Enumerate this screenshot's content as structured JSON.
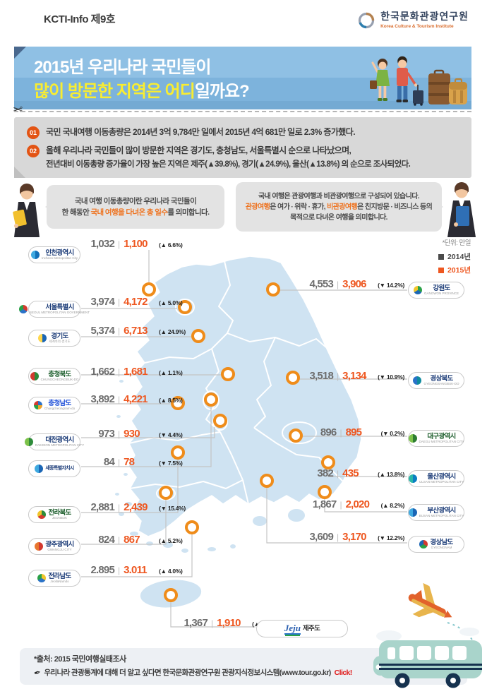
{
  "header": {
    "issue": "KCTI-Info 제9호",
    "org_kr": "한국문화관광연구원",
    "org_en": "Korea Culture & Tourism Institute"
  },
  "banner": {
    "title_line1": "2015년 우리나라 국민들이",
    "title_line2_highlight": "많이 방문한 지역은 어디",
    "title_line2_rest": "일까요?"
  },
  "points": [
    {
      "num": "01",
      "lines": [
        "국민 국내여행 이동총량은 2014년 3억 9,784만 일에서 2015년 4억 681만 일로 2.3% 증가했다."
      ]
    },
    {
      "num": "02",
      "lines": [
        "올해 우리나라 국민들이 많이 방문한 지역은 경기도, 충청남도, 서울특별시 순으로 나타났으며,",
        "전년대비 이동총량 증가율이 가장 높은 지역은 제주(▲39.8%), 경기(▲24.9%), 울산(▲13.8%) 의 순으로 조사되었다."
      ]
    }
  ],
  "bubbles": {
    "left": {
      "line1": "국내 여행 이동총량이란 우리나라 국민들이",
      "line2_pre": "한 해동안 ",
      "line2_hl": "국내 여행을 다녀온 총 일수",
      "line2_post": "를 의미합니다."
    },
    "right": {
      "line1": "국내 여행은 관광여행과 비관광여행으로 구성되어 있습니다.",
      "line2_hl1": "관광여행",
      "line2_mid": "은 여가 · 위락 · 휴가, ",
      "line2_hl2": "비관광여행",
      "line2_post": "은 친지방문 · 비즈니스 등의",
      "line3": "목적으로 다녀온 여행을 의미합니다."
    }
  },
  "legend": {
    "unit": "*단위: 만일",
    "y2014": "2014년",
    "y2015": "2015년",
    "color2014": "#4a4a4a",
    "color2015": "#ee5720"
  },
  "chart_data": {
    "type": "map",
    "title": "2015년 우리나라 국민들이 많이 방문한 지역",
    "unit": "만일",
    "series": [
      "2014년",
      "2015년"
    ],
    "regions": [
      {
        "id": "incheon",
        "name": "인천광역시",
        "sub": "Incheon Metropolitan City",
        "name_color": "#1c3c78",
        "logo_colors": [
          "#1270b8",
          "#3fa9e0"
        ],
        "v2014": 1032,
        "v2015": 1100,
        "change_pct": 6.6,
        "d2014": "1,032",
        "d2015": "1,100",
        "dchange": "(▲ 6.6%)"
      },
      {
        "id": "seoul",
        "name": "서울특별시",
        "sub": "SEOUL METROPOLITAN GOVERNMENT",
        "name_color": "#1c3c78",
        "logo_colors": [
          "#d43a2f",
          "#2a72c8",
          "#2aa147"
        ],
        "v2014": 3974,
        "v2015": 4172,
        "change_pct": 5.0,
        "d2014": "3,974",
        "d2015": "4,172",
        "dchange": "(▲ 5.0%)"
      },
      {
        "id": "gyeonggi",
        "name": "경기도",
        "sub": "세계속의 경기도",
        "name_color": "#1c3c78",
        "logo_colors": [
          "#1b66b5",
          "#ffd74d"
        ],
        "v2014": 5374,
        "v2015": 6713,
        "change_pct": 24.9,
        "d2014": "5,374",
        "d2015": "6,713",
        "dchange": "(▲ 24.9%)"
      },
      {
        "id": "chungbuk",
        "name": "충청북도",
        "sub": "CHUNGCHEONGBUK-DO",
        "name_color": "#1a5c2a",
        "logo_colors": [
          "#2e8b3a",
          "#d43a2f"
        ],
        "v2014": 1662,
        "v2015": 1681,
        "change_pct": 1.1,
        "d2014": "1,662",
        "d2015": "1,681",
        "dchange": "(▲ 1.1%)"
      },
      {
        "id": "chungnam",
        "name": "충청남도",
        "sub": "Chungcheongnam-do",
        "name_color": "#1d4ed8",
        "logo_colors": [
          "#2a72c8",
          "#f0a52c",
          "#2aa147",
          "#d43a2f"
        ],
        "v2014": 3892,
        "v2015": 4221,
        "change_pct": 8.5,
        "d2014": "3,892",
        "d2015": "4,221",
        "dchange": "(▲ 8.5%)"
      },
      {
        "id": "daejeon",
        "name": "대전광역시",
        "sub": "DAEJEON METROPOLITAN CITY",
        "name_color": "#1c3c78",
        "logo_colors": [
          "#2e8b3a",
          "#7cc24a"
        ],
        "v2014": 973,
        "v2015": 930,
        "change_pct": -4.4,
        "d2014": "973",
        "d2015": "930",
        "dchange": "(▼ 4.4%)"
      },
      {
        "id": "sejong",
        "name": "세종특별자치시",
        "sub": "",
        "name_color": "#1c3c78",
        "logo_colors": [
          "#1b66b5",
          "#3fa9e0"
        ],
        "v2014": 84,
        "v2015": 78,
        "change_pct": -7.5,
        "d2014": "84",
        "d2015": "78",
        "dchange": "(▼ 7.5%)"
      },
      {
        "id": "jeonbuk",
        "name": "전라북도",
        "sub": "JEONBUK",
        "name_color": "#1a5c2a",
        "logo_colors": [
          "#2e8b3a",
          "#d43a2f",
          "#f0c52c"
        ],
        "v2014": 2881,
        "v2015": 2439,
        "change_pct": -15.4,
        "d2014": "2,881",
        "d2015": "2,439",
        "dchange": "(▼ 15.4%)"
      },
      {
        "id": "gwangju",
        "name": "광주광역시",
        "sub": "GWANGJU CITY",
        "name_color": "#1c3c78",
        "logo_colors": [
          "#d43a2f",
          "#e8762f"
        ],
        "v2014": 824,
        "v2015": 867,
        "change_pct": 5.2,
        "d2014": "824",
        "d2015": "867",
        "dchange": "(▲ 5.2%)"
      },
      {
        "id": "jeonnam",
        "name": "전라남도",
        "sub": "JeollaNamdo",
        "name_color": "#1c3c78",
        "logo_colors": [
          "#f0c52c",
          "#2a72c8",
          "#2aa147"
        ],
        "v2014": 2895,
        "v2015": 3011,
        "change_pct": 4.0,
        "d2014": "2.895",
        "d2015": "3.011",
        "dchange": "(▲ 4.0%)"
      },
      {
        "id": "gangwon",
        "name": "강원도",
        "sub": "GANGWON PROVINCE",
        "name_color": "#1c3c78",
        "logo_colors": [
          "#2aa147",
          "#1b66b5",
          "#f0c52c"
        ],
        "v2014": 4553,
        "v2015": 3906,
        "change_pct": -14.2,
        "d2014": "4,553",
        "d2015": "3,906",
        "dchange": "(▼ 14.2%)"
      },
      {
        "id": "gyeongbuk",
        "name": "경상북도",
        "sub": "GYEONGSANGBUK-DO",
        "name_color": "#1c3c78",
        "logo_colors": [
          "#0e8a9e",
          "#2a72c8"
        ],
        "v2014": 3518,
        "v2015": 3134,
        "change_pct": -10.9,
        "d2014": "3,518",
        "d2015": "3,134",
        "dchange": "(▼ 10.9%)"
      },
      {
        "id": "daegu",
        "name": "대구광역시",
        "sub": "DAEGU METROPOLITAN CITY",
        "name_color": "#1a5c2a",
        "logo_colors": [
          "#2e7d32",
          "#7cc24a"
        ],
        "v2014": 896,
        "v2015": 895,
        "change_pct": -0.2,
        "d2014": "896",
        "d2015": "895",
        "dchange": "(▼ 0.2%)"
      },
      {
        "id": "ulsan",
        "name": "울산광역시",
        "sub": "ULSAN METROPOLITAN CITY",
        "name_color": "#1c3c78",
        "logo_colors": [
          "#0a7ec2",
          "#29b6a8"
        ],
        "v2014": 382,
        "v2015": 435,
        "change_pct": 13.8,
        "d2014": "382",
        "d2015": "435",
        "dchange": "(▲ 13.8%)"
      },
      {
        "id": "busan",
        "name": "부산광역시",
        "sub": "BUSAN METROPOLITAN CITY",
        "name_color": "#1c3c78",
        "logo_colors": [
          "#1b66b5",
          "#3fa9e0"
        ],
        "v2014": 1867,
        "v2015": 2020,
        "change_pct": 8.2,
        "d2014": "1,867",
        "d2015": "2,020",
        "dchange": "(▲ 8.2%)"
      },
      {
        "id": "gyeongnam",
        "name": "경상남도",
        "sub": "GYEONGNAM",
        "name_color": "#1c3c78",
        "logo_colors": [
          "#d43a2f",
          "#2aa147",
          "#1b66b5"
        ],
        "v2014": 3609,
        "v2015": 3170,
        "change_pct": -12.2,
        "d2014": "3,609",
        "d2015": "3,170",
        "dchange": "(▼ 12.2%)"
      },
      {
        "id": "jeju",
        "name": "제주도",
        "sub": "",
        "name_color": "#333333",
        "logo_text": "Jeju",
        "logo_colors": [
          "#2a5fb0",
          "#e8a13c",
          "#2aa147"
        ],
        "v2014": 1367,
        "v2015": 1910,
        "change_pct": 39.8,
        "d2014": "1,367",
        "d2015": "1,910",
        "dchange": "(▲ 39.8%)"
      }
    ]
  },
  "footer": {
    "source": "*출처: 2015 국민여행실태조사",
    "info_pre": "우리나라 관광통계에 대해 더 알고 싶다면 한국문화관광연구원 관광지식정보시스템(www.tour.go.kr)",
    "click": "Click!"
  }
}
